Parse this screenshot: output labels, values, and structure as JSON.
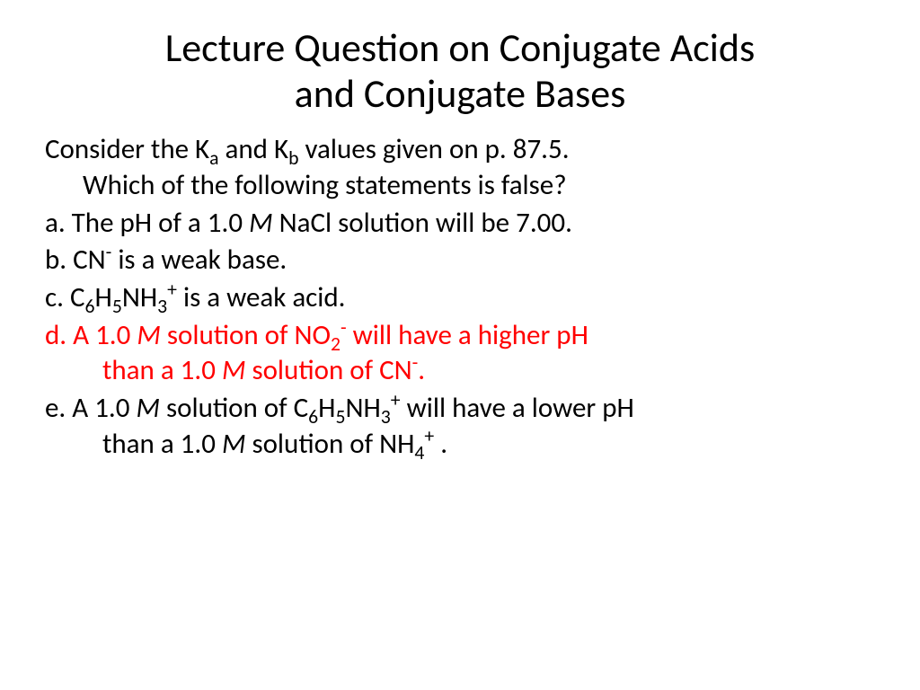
{
  "title": {
    "line1": "Lecture Question on Conjugate Acids",
    "line2": "and Conjugate Bases"
  },
  "prompt": {
    "part1": "Consider the K",
    "sub1": "a",
    "part2": " and K",
    "sub2": "b",
    "part3": " values given on p. 87.5.",
    "line2": "Which of the following statements is false?"
  },
  "options": {
    "a": {
      "prefix": "a. The pH of a 1.0 ",
      "italic1": "M",
      "suffix": " NaCl solution will be 7.00."
    },
    "b": {
      "prefix": "b. CN",
      "sup1": "-",
      "suffix": " is a weak base."
    },
    "c": {
      "prefix": "c. C",
      "sub1": "6",
      "mid1": "H",
      "sub2": "5",
      "mid2": "NH",
      "sub3": "3",
      "sup1": "+",
      "suffix": " is a weak acid."
    },
    "d": {
      "prefix": "d. A 1.0 ",
      "italic1": "M",
      "mid1": " solution of NO",
      "sub1": "2",
      "sup1": "-",
      "mid2": " will have a higher pH",
      "line2_prefix": "than a 1.0 ",
      "line2_italic": "M",
      "line2_mid": " solution of CN",
      "line2_sup": "-",
      "line2_suffix": "."
    },
    "e": {
      "prefix": "e. A 1.0 ",
      "italic1": "M",
      "mid1": " solution of C",
      "sub1": "6",
      "mid2": "H",
      "sub2": "5",
      "mid3": "NH",
      "sub3": "3",
      "sup1": "+",
      "mid4": " will have a lower pH",
      "line2_prefix": "than a 1.0 ",
      "line2_italic": "M",
      "line2_mid": " solution of NH",
      "line2_sub": "4",
      "line2_sup": "+",
      "line2_suffix": " ."
    }
  },
  "colors": {
    "text": "#000000",
    "false_answer": "#ff0000",
    "background": "#ffffff"
  },
  "typography": {
    "title_fontsize": 44,
    "body_fontsize": 31,
    "font_family": "Calibri"
  }
}
